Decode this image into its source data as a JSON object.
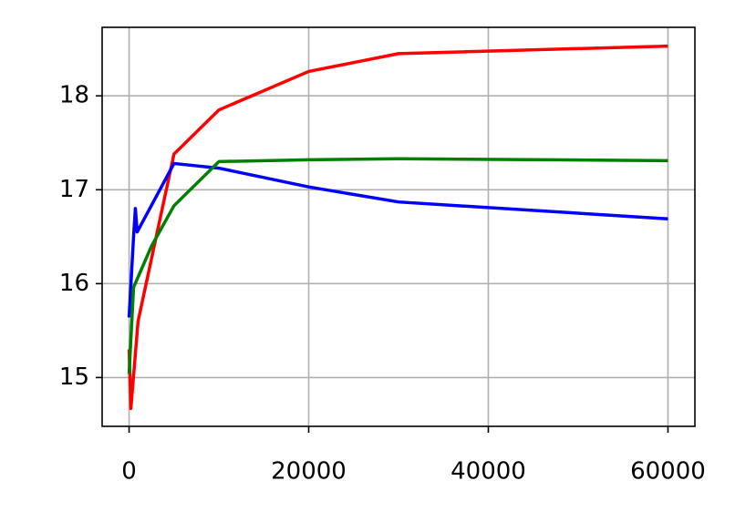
{
  "chart_data": {
    "type": "line",
    "xlim": [
      -3000,
      63000
    ],
    "xticks": [
      0,
      20000,
      40000,
      60000
    ],
    "ylim": [
      14.48,
      18.73
    ],
    "yticks": [
      15,
      16,
      17,
      18
    ],
    "grid": true,
    "series": [
      {
        "color": "#ff0000",
        "x": [
          0,
          200,
          1000,
          5000,
          10000,
          20000,
          30000,
          60000
        ],
        "values": [
          15.3,
          14.67,
          15.6,
          17.38,
          17.85,
          18.26,
          18.45,
          18.53
        ]
      },
      {
        "color": "#0000ff",
        "x": [
          0,
          500,
          700,
          900,
          5000,
          10000,
          20000,
          30000,
          60000
        ],
        "values": [
          15.64,
          16.5,
          16.8,
          16.55,
          17.28,
          17.23,
          17.03,
          16.87,
          16.69
        ]
      },
      {
        "color": "#008000",
        "x": [
          0,
          500,
          2500,
          5000,
          10000,
          20000,
          30000,
          60000
        ],
        "values": [
          15.04,
          15.96,
          16.4,
          16.83,
          17.3,
          17.32,
          17.33,
          17.31
        ]
      }
    ]
  }
}
